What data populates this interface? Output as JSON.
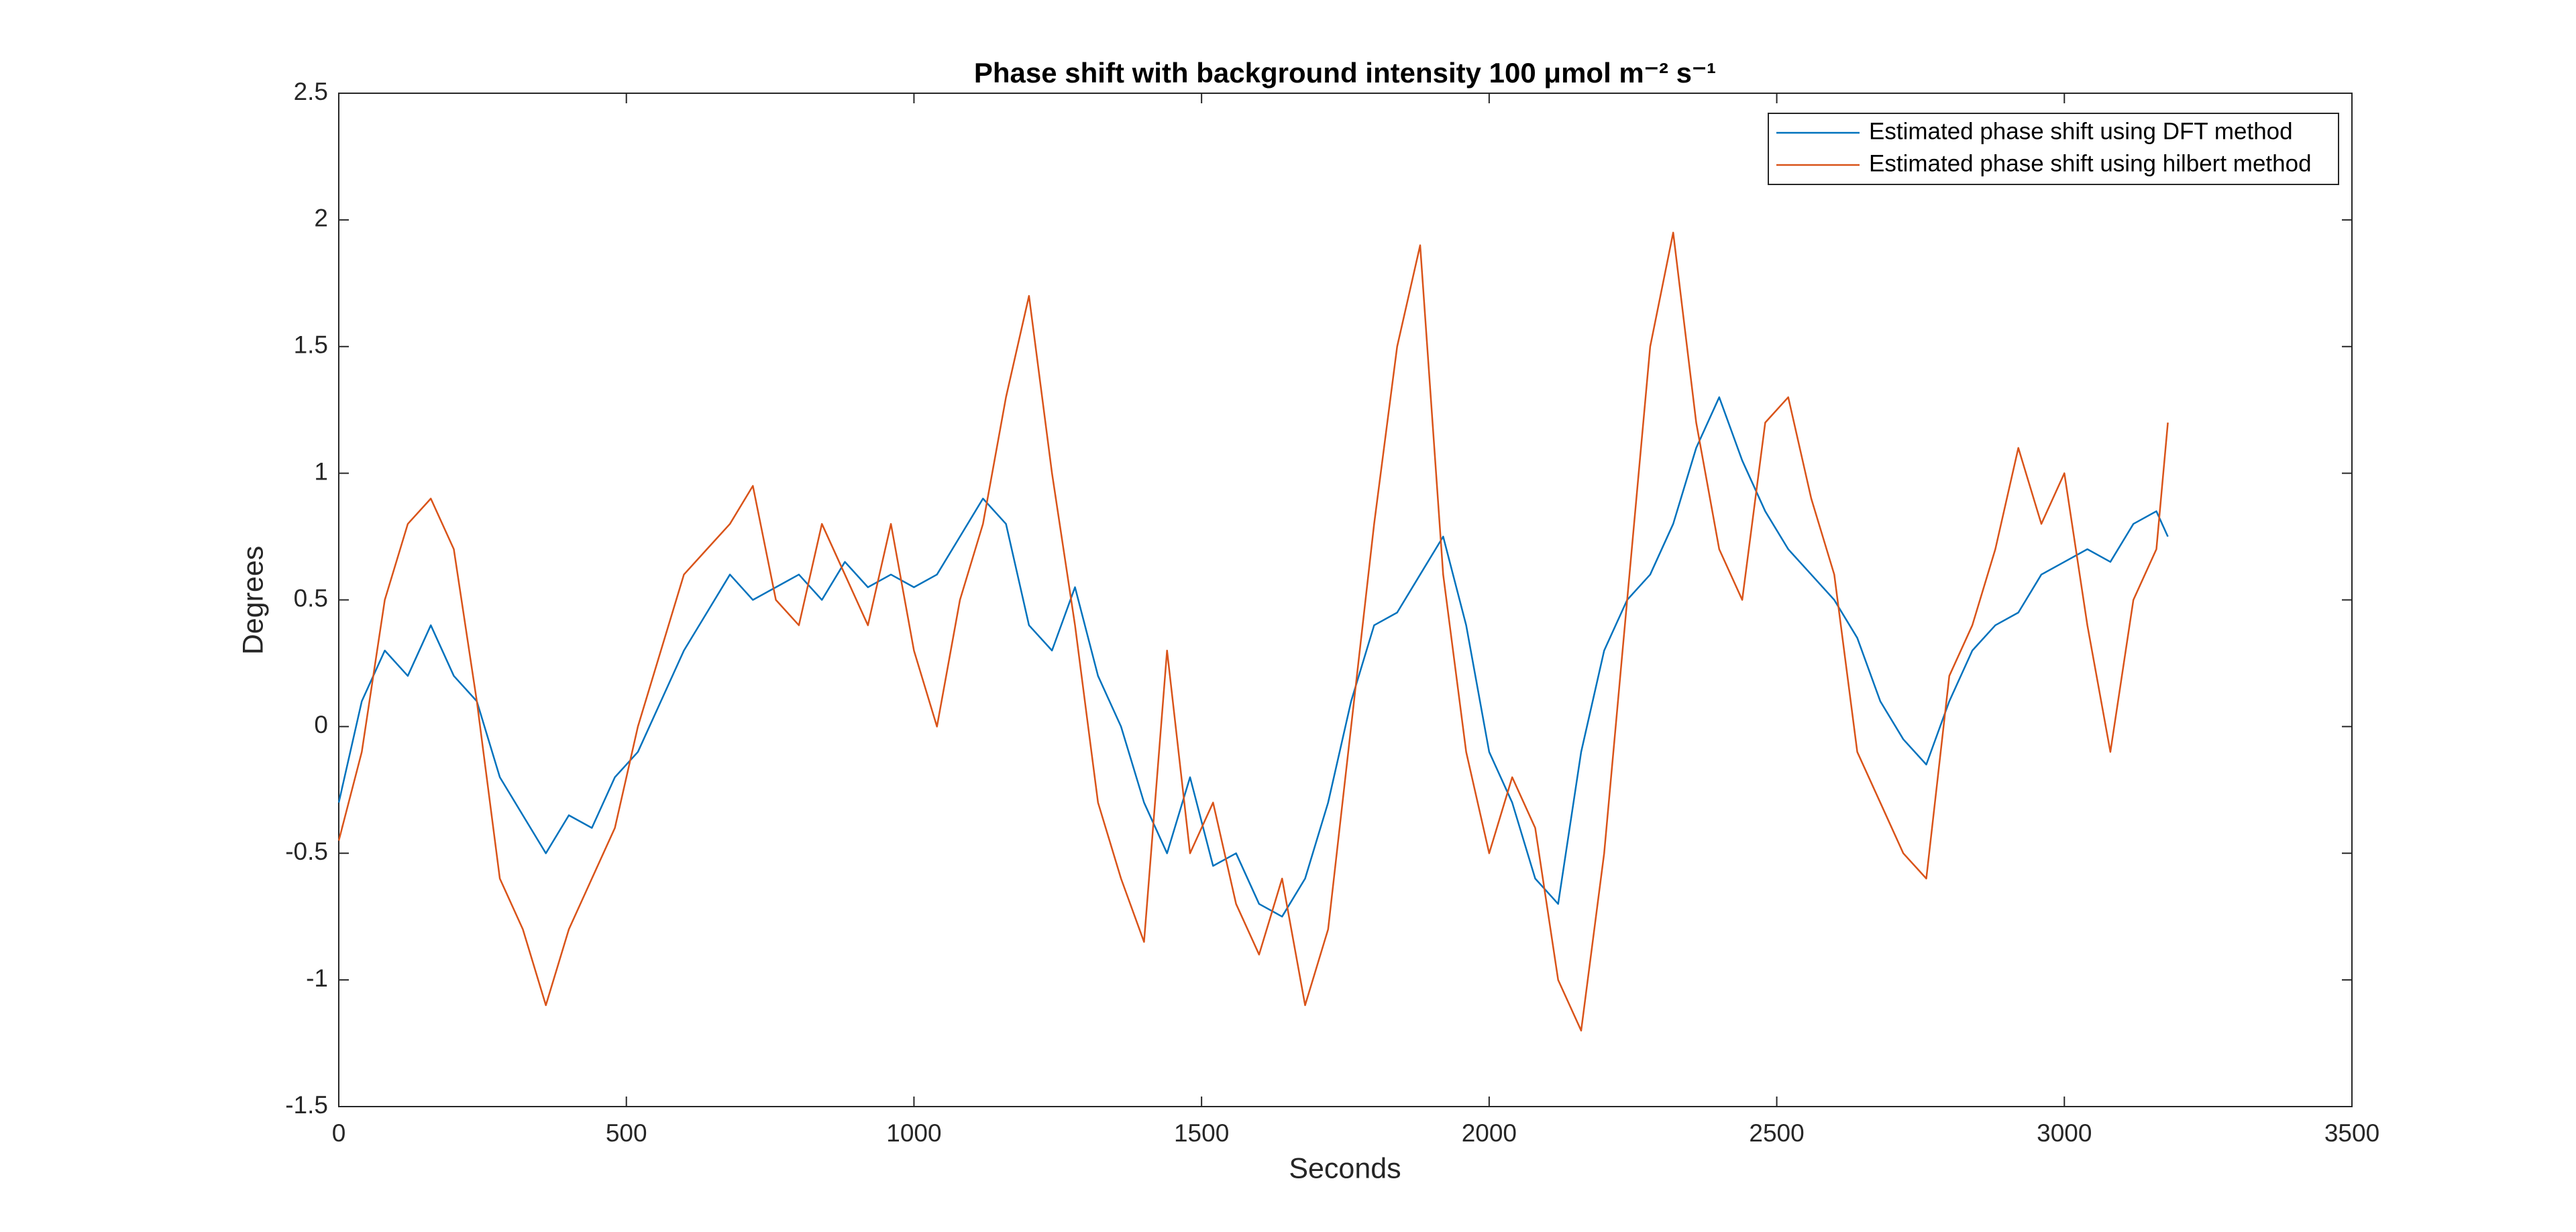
{
  "chart_data": {
    "type": "line",
    "title": "Phase shift with background intensity 100 μmol m⁻² s⁻¹",
    "xlabel": "Seconds",
    "ylabel": "Degrees",
    "x": [
      0,
      40,
      80,
      120,
      160,
      200,
      240,
      280,
      320,
      360,
      400,
      440,
      480,
      520,
      560,
      600,
      640,
      680,
      720,
      760,
      800,
      840,
      880,
      920,
      960,
      1000,
      1040,
      1080,
      1120,
      1160,
      1200,
      1240,
      1280,
      1320,
      1360,
      1400,
      1440,
      1480,
      1520,
      1560,
      1600,
      1640,
      1680,
      1720,
      1760,
      1800,
      1840,
      1880,
      1920,
      1960,
      2000,
      2040,
      2080,
      2120,
      2160,
      2200,
      2240,
      2280,
      2320,
      2360,
      2400,
      2440,
      2480,
      2520,
      2560,
      2600,
      2640,
      2680,
      2720,
      2760,
      2800,
      2840,
      2880,
      2920,
      2960,
      3000,
      3040,
      3080,
      3120,
      3160,
      3180
    ],
    "series": [
      {
        "name": "Estimated phase shift using DFT method",
        "color": "#0072BD",
        "values": [
          -0.3,
          0.1,
          0.3,
          0.2,
          0.4,
          0.2,
          0.1,
          -0.2,
          -0.35,
          -0.5,
          -0.35,
          -0.4,
          -0.2,
          -0.1,
          0.1,
          0.3,
          0.45,
          0.6,
          0.5,
          0.55,
          0.6,
          0.5,
          0.65,
          0.55,
          0.6,
          0.55,
          0.6,
          0.75,
          0.9,
          0.8,
          0.4,
          0.3,
          0.55,
          0.2,
          0.0,
          -0.3,
          -0.5,
          -0.2,
          -0.55,
          -0.5,
          -0.7,
          -0.75,
          -0.6,
          -0.3,
          0.1,
          0.4,
          0.45,
          0.6,
          0.75,
          0.4,
          -0.1,
          -0.3,
          -0.6,
          -0.7,
          -0.1,
          0.3,
          0.5,
          0.6,
          0.8,
          1.1,
          1.3,
          1.05,
          0.85,
          0.7,
          0.6,
          0.5,
          0.35,
          0.1,
          -0.05,
          -0.15,
          0.1,
          0.3,
          0.4,
          0.45,
          0.6,
          0.65,
          0.7,
          0.65,
          0.8,
          0.85,
          0.75
        ]
      },
      {
        "name": "Estimated phase shift using hilbert method",
        "color": "#D95319",
        "values": [
          -0.45,
          -0.1,
          0.5,
          0.8,
          0.9,
          0.7,
          0.1,
          -0.6,
          -0.8,
          -1.1,
          -0.8,
          -0.6,
          -0.4,
          0.0,
          0.3,
          0.6,
          0.7,
          0.8,
          0.95,
          0.5,
          0.4,
          0.8,
          0.6,
          0.4,
          0.8,
          0.3,
          0.0,
          0.5,
          0.8,
          1.3,
          1.7,
          1.0,
          0.4,
          -0.3,
          -0.6,
          -0.85,
          0.3,
          -0.5,
          -0.3,
          -0.7,
          -0.9,
          -0.6,
          -1.1,
          -0.8,
          0.0,
          0.8,
          1.5,
          1.9,
          0.6,
          -0.1,
          -0.5,
          -0.2,
          -0.4,
          -1.0,
          -1.2,
          -0.5,
          0.5,
          1.5,
          1.95,
          1.2,
          0.7,
          0.5,
          1.2,
          1.3,
          0.9,
          0.6,
          -0.1,
          -0.3,
          -0.5,
          -0.6,
          0.2,
          0.4,
          0.7,
          1.1,
          0.8,
          1.0,
          0.4,
          -0.1,
          0.5,
          0.7,
          1.2
        ]
      }
    ],
    "xlim": [
      0,
      3500
    ],
    "xticks": [
      0,
      500,
      1000,
      1500,
      2000,
      2500,
      3000,
      3500
    ],
    "ylim": [
      -1.5,
      2.5
    ],
    "yticks": [
      -1.5,
      -1,
      -0.5,
      0,
      0.5,
      1,
      1.5,
      2,
      2.5
    ],
    "legend": "upper right"
  }
}
